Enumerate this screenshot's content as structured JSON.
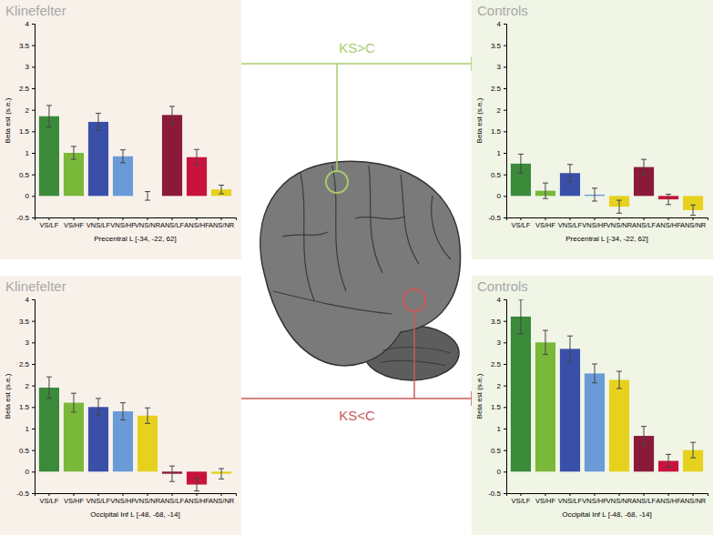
{
  "chart_data": [
    {
      "type": "bar",
      "title": "Klinefelter",
      "x_label": "Precentral L [-34, -22, 62]",
      "y_label": "Beta est (s.e.)",
      "categories": [
        "VS/LF",
        "VS/HF",
        "VNS/LF",
        "VNS/HF",
        "VNS/NR",
        "ANS/LF",
        "ANS/HF",
        "ANS/NR"
      ],
      "values": [
        1.85,
        1.0,
        1.72,
        0.92,
        0.0,
        1.88,
        0.9,
        0.15
      ],
      "errors": [
        0.25,
        0.15,
        0.2,
        0.15,
        0.1,
        0.2,
        0.18,
        0.1
      ],
      "colors": [
        "#3a8a3a",
        "#7ab83a",
        "#3a4fa8",
        "#6a9bd8",
        "#e6d21e",
        "#8b1a3a",
        "#c8143c",
        "#e6d21e"
      ],
      "ylim": [
        -0.5,
        4
      ],
      "yticks": [
        -0.5,
        0,
        0.5,
        1,
        1.5,
        2,
        2.5,
        3,
        3.5,
        4
      ],
      "grid": false
    },
    {
      "type": "bar",
      "title": "Controls",
      "x_label": "Precentral L [-34, -22, 62]",
      "y_label": "Beta est (s.e.)",
      "categories": [
        "VS/LF",
        "VS/HF",
        "VNS/LF",
        "VNS/HF",
        "VNS/NR",
        "ANS/LF",
        "ANS/HF",
        "ANS/NR"
      ],
      "values": [
        0.75,
        0.12,
        0.53,
        0.03,
        -0.25,
        0.67,
        -0.08,
        -0.33
      ],
      "errors": [
        0.22,
        0.18,
        0.2,
        0.15,
        0.15,
        0.18,
        0.12,
        0.12
      ],
      "colors": [
        "#3a8a3a",
        "#7ab83a",
        "#3a4fa8",
        "#6a9bd8",
        "#e6d21e",
        "#8b1a3a",
        "#c8143c",
        "#e6d21e"
      ],
      "ylim": [
        -0.5,
        4
      ],
      "yticks": [
        -0.5,
        0,
        0.5,
        1,
        1.5,
        2,
        2.5,
        3,
        3.5,
        4
      ],
      "grid": false
    },
    {
      "type": "bar",
      "title": "Klinefelter",
      "x_label": "Occipital Inf L [-48, -68, -14]",
      "y_label": "Beta est (s.e.)",
      "categories": [
        "VS/LF",
        "VS/HF",
        "VNS/LF",
        "VNS/HF",
        "VNS/NR",
        "ANS/LF",
        "ANS/HF",
        "ANS/NR"
      ],
      "values": [
        1.95,
        1.6,
        1.5,
        1.4,
        1.3,
        -0.05,
        -0.3,
        -0.05
      ],
      "errors": [
        0.25,
        0.22,
        0.2,
        0.2,
        0.18,
        0.18,
        0.15,
        0.12
      ],
      "colors": [
        "#3a8a3a",
        "#7ab83a",
        "#3a4fa8",
        "#6a9bd8",
        "#e6d21e",
        "#8b1a3a",
        "#c8143c",
        "#e6d21e"
      ],
      "ylim": [
        -0.5,
        4
      ],
      "yticks": [
        -0.5,
        0,
        0.5,
        1,
        1.5,
        2,
        2.5,
        3,
        3.5,
        4
      ],
      "grid": false
    },
    {
      "type": "bar",
      "title": "Controls",
      "x_label": "Occipital Inf L [-48, -68, -14]",
      "y_label": "Beta est (s.e.)",
      "categories": [
        "VS/LF",
        "VS/HF",
        "VNS/LF",
        "VNS/HF",
        "VNS/NR",
        "ANS/LF",
        "ANS/HF",
        "ANS/NR"
      ],
      "values": [
        3.6,
        3.0,
        2.85,
        2.28,
        2.13,
        0.83,
        0.25,
        0.5
      ],
      "errors": [
        0.4,
        0.28,
        0.3,
        0.22,
        0.2,
        0.22,
        0.15,
        0.18
      ],
      "colors": [
        "#3a8a3a",
        "#7ab83a",
        "#3a4fa8",
        "#6a9bd8",
        "#e6d21e",
        "#8b1a3a",
        "#c8143c",
        "#e6d21e"
      ],
      "ylim": [
        -0.5,
        4
      ],
      "yticks": [
        -0.5,
        0,
        0.5,
        1,
        1.5,
        2,
        2.5,
        3,
        3.5,
        4
      ],
      "grid": false
    }
  ],
  "annotations": [
    "KS>C",
    "KS<C"
  ]
}
